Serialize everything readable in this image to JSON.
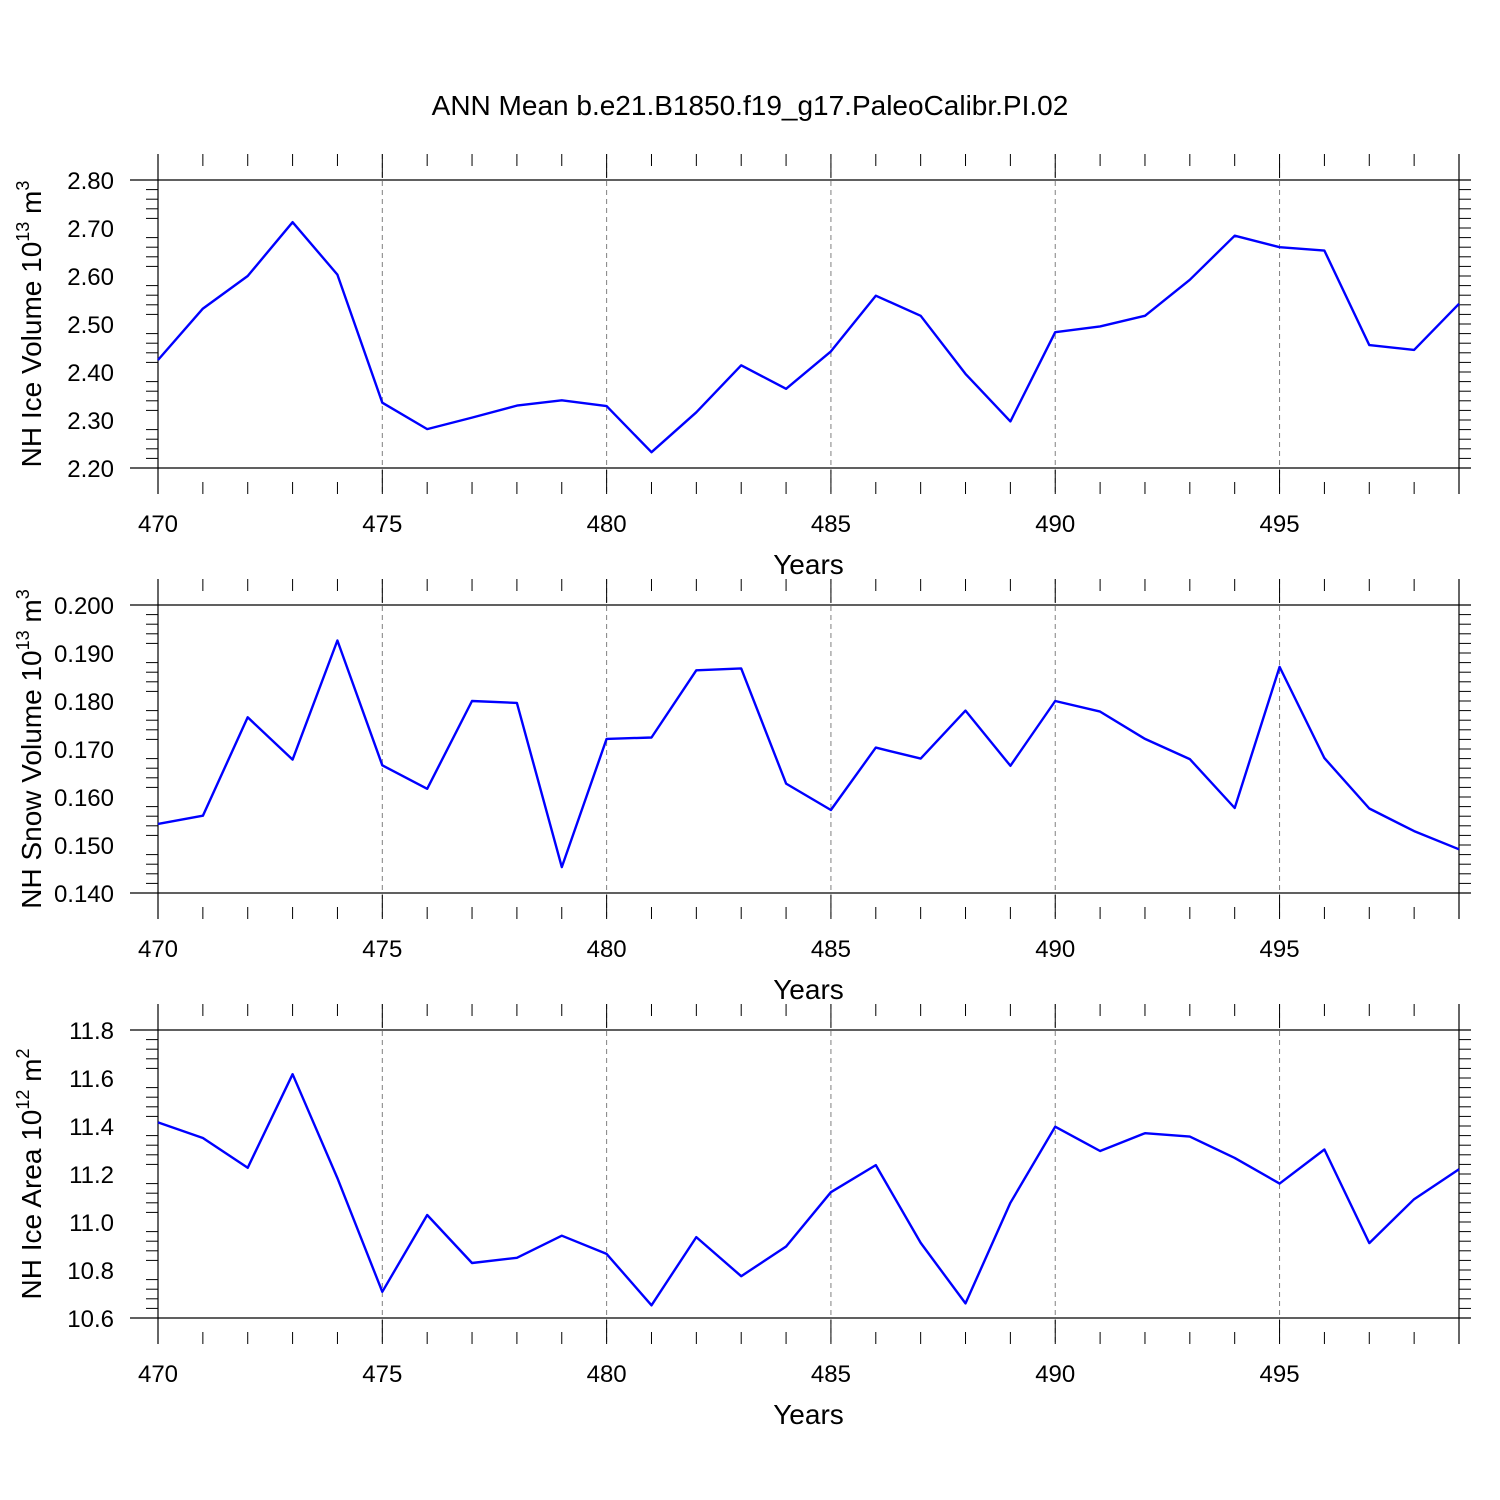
{
  "title": "ANN Mean b.e21.B1850.f19_g17.PaleoCalibr.PI.02",
  "colors": {
    "line": "#0000ff",
    "axis": "#000000",
    "grid": "#808080",
    "background": "#ffffff"
  },
  "chart_data": [
    {
      "type": "line",
      "xlabel": "Years",
      "ylabel": "NH Ice Volume 10",
      "ylabel_exponent": "13",
      "ylabel_unit": " m",
      "ylabel_unit_exponent": "3",
      "xlim": [
        470,
        499
      ],
      "ylim": [
        2.2,
        2.8
      ],
      "xticks": [
        470,
        475,
        480,
        485,
        490,
        495
      ],
      "yticks": [
        "2.20",
        "2.30",
        "2.40",
        "2.50",
        "2.60",
        "2.70",
        "2.80"
      ],
      "grid": "vertical dashed at major x ticks",
      "series": [
        {
          "x": [
            470,
            471,
            472,
            473,
            474,
            475,
            476,
            477,
            478,
            479,
            480,
            481,
            482,
            483,
            484,
            485,
            486,
            487,
            488,
            489,
            490,
            491,
            492,
            493,
            494,
            495,
            496,
            497,
            498,
            499
          ],
          "values": [
            2.425,
            2.532,
            2.6,
            2.712,
            2.603,
            2.336,
            2.281,
            2.305,
            2.33,
            2.341,
            2.329,
            2.233,
            2.316,
            2.414,
            2.365,
            2.443,
            2.559,
            2.517,
            2.396,
            2.297,
            2.483,
            2.495,
            2.517,
            2.592,
            2.684,
            2.66,
            2.653,
            2.456,
            2.446,
            2.542
          ]
        }
      ]
    },
    {
      "type": "line",
      "xlabel": "Years",
      "ylabel": "NH Snow Volume 10",
      "ylabel_exponent": "13",
      "ylabel_unit": " m",
      "ylabel_unit_exponent": "3",
      "xlim": [
        470,
        499
      ],
      "ylim": [
        0.14,
        0.2
      ],
      "xticks": [
        470,
        475,
        480,
        485,
        490,
        495
      ],
      "yticks": [
        "0.140",
        "0.150",
        "0.160",
        "0.170",
        "0.180",
        "0.190",
        "0.200"
      ],
      "grid": "vertical dashed at major x ticks",
      "series": [
        {
          "x": [
            470,
            471,
            472,
            473,
            474,
            475,
            476,
            477,
            478,
            479,
            480,
            481,
            482,
            483,
            484,
            485,
            486,
            487,
            488,
            489,
            490,
            491,
            492,
            493,
            494,
            495,
            496,
            497,
            498,
            499
          ],
          "values": [
            0.1544,
            0.1561,
            0.1766,
            0.1678,
            0.1926,
            0.1666,
            0.1617,
            0.18,
            0.1796,
            0.1454,
            0.1721,
            0.1724,
            0.1864,
            0.1868,
            0.1628,
            0.1573,
            0.1703,
            0.168,
            0.178,
            0.1665,
            0.18,
            0.1778,
            0.1721,
            0.1679,
            0.1577,
            0.1871,
            0.1681,
            0.1576,
            0.1529,
            0.1491
          ]
        }
      ]
    },
    {
      "type": "line",
      "xlabel": "Years",
      "ylabel": "NH Ice Area 10",
      "ylabel_exponent": "12",
      "ylabel_unit": " m",
      "ylabel_unit_exponent": "2",
      "xlim": [
        470,
        499
      ],
      "ylim": [
        10.6,
        11.8
      ],
      "xticks": [
        470,
        475,
        480,
        485,
        490,
        495
      ],
      "yticks": [
        "10.6",
        "10.8",
        "11.0",
        "11.2",
        "11.4",
        "11.6",
        "11.8"
      ],
      "grid": "vertical dashed at major x ticks",
      "series": [
        {
          "x": [
            470,
            471,
            472,
            473,
            474,
            475,
            476,
            477,
            478,
            479,
            480,
            481,
            482,
            483,
            484,
            485,
            486,
            487,
            488,
            489,
            490,
            491,
            492,
            493,
            494,
            495,
            496,
            497,
            498,
            499
          ],
          "values": [
            11.415,
            11.35,
            11.226,
            11.616,
            11.183,
            10.709,
            11.029,
            10.829,
            10.851,
            10.943,
            10.867,
            10.653,
            10.937,
            10.774,
            10.898,
            11.124,
            11.237,
            10.913,
            10.661,
            11.08,
            11.397,
            11.296,
            11.37,
            11.356,
            11.267,
            11.16,
            11.302,
            10.912,
            11.095,
            11.22
          ]
        }
      ]
    }
  ]
}
